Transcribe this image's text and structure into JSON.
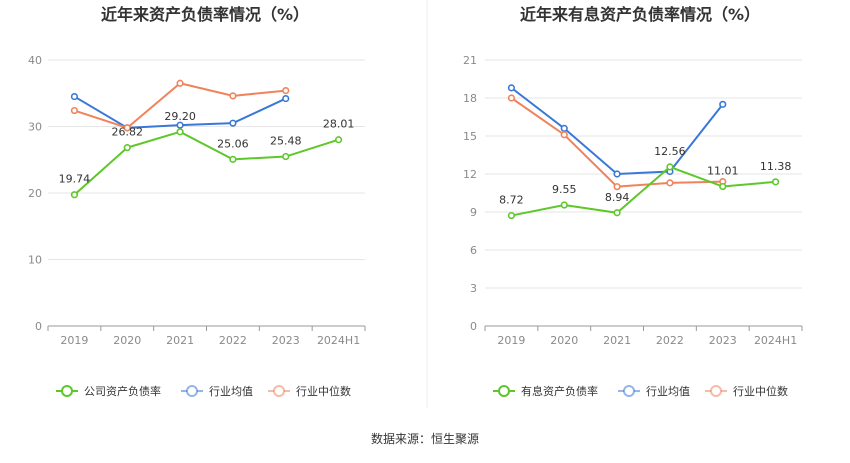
{
  "source_text": "数据来源：恒生聚源",
  "colors": {
    "company": "#5ec72a",
    "avg": "#3a78d8",
    "median": "#f0835c",
    "grid": "#e6e6e6",
    "axis": "#999999"
  },
  "chart_data": [
    {
      "type": "line",
      "title": "近年来资产负债率情况（%）",
      "categories": [
        "2019",
        "2020",
        "2021",
        "2022",
        "2023",
        "2024H1"
      ],
      "ylim": [
        0,
        40
      ],
      "yticks": [
        0,
        10,
        20,
        30,
        40
      ],
      "grid": true,
      "legend_position": "bottom",
      "series": [
        {
          "name": "公司资产负债率",
          "key": "company",
          "values": [
            19.74,
            26.82,
            29.2,
            25.06,
            25.48,
            28.01
          ],
          "labels": [
            "19.74",
            "26.82",
            "29.20",
            "25.06",
            "25.48",
            "28.01"
          ]
        },
        {
          "name": "行业均值",
          "key": "avg",
          "values": [
            34.5,
            29.8,
            30.2,
            30.5,
            34.2,
            null
          ]
        },
        {
          "name": "行业中位数",
          "key": "median",
          "values": [
            32.4,
            29.8,
            36.5,
            34.6,
            35.4,
            null
          ]
        }
      ]
    },
    {
      "type": "line",
      "title": "近年来有息资产负债率情况（%）",
      "categories": [
        "2019",
        "2020",
        "2021",
        "2022",
        "2023",
        "2024H1"
      ],
      "ylim": [
        0,
        21
      ],
      "yticks": [
        0,
        3,
        6,
        9,
        12,
        15,
        18,
        21
      ],
      "grid": true,
      "legend_position": "bottom",
      "series": [
        {
          "name": "有息资产负债率",
          "key": "company",
          "values": [
            8.72,
            9.55,
            8.94,
            12.56,
            11.01,
            11.38
          ],
          "labels": [
            "8.72",
            "9.55",
            "8.94",
            "12.56",
            "11.01",
            "11.38"
          ]
        },
        {
          "name": "行业均值",
          "key": "avg",
          "values": [
            18.8,
            15.6,
            12.0,
            12.2,
            17.5,
            null
          ]
        },
        {
          "name": "行业中位数",
          "key": "median",
          "values": [
            18.0,
            15.1,
            11.0,
            11.3,
            11.4,
            null
          ]
        }
      ]
    }
  ]
}
